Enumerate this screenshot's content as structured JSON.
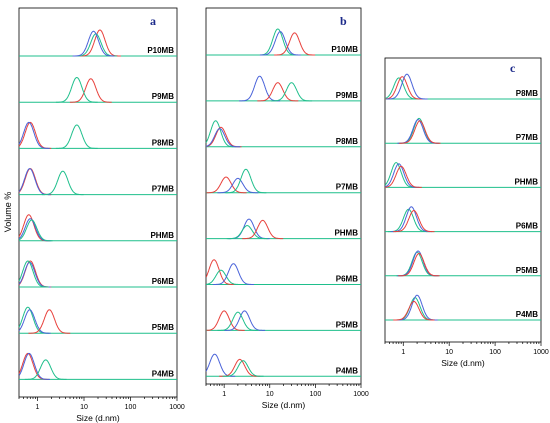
{
  "figure": {
    "ylabel": "Volume %",
    "colors": {
      "red": "#e8413c",
      "green": "#1fbf8c",
      "blue": "#4a63d9",
      "frame": "#000000",
      "panel_letter": "#1c2a8a"
    }
  },
  "chart_data": [
    {
      "type": "line",
      "panel": "a",
      "xlabel": "Size (d.nm)",
      "x_scale": "log",
      "xlim": [
        0.4,
        1000
      ],
      "x_ticks": [
        1,
        10,
        100,
        1000
      ],
      "x_tick_labels": [
        "1",
        "10",
        "100",
        "1000"
      ],
      "y_ticks": false,
      "rows": [
        {
          "label": "P10MB",
          "peaks": [
            {
              "color": "red",
              "center": 22,
              "height": 1.0
            },
            {
              "color": "green",
              "center": 18,
              "height": 0.85
            },
            {
              "color": "blue",
              "center": 16,
              "height": 0.95
            }
          ]
        },
        {
          "label": "P9MB",
          "peaks": [
            {
              "color": "red",
              "center": 14,
              "height": 0.9
            },
            {
              "color": "green",
              "center": 7,
              "height": 0.95
            }
          ]
        },
        {
          "label": "P8MB",
          "peaks": [
            {
              "color": "red",
              "center": 0.7,
              "height": 1.0
            },
            {
              "color": "blue",
              "center": 0.65,
              "height": 1.0
            },
            {
              "color": "green",
              "center": 7,
              "height": 0.9
            }
          ]
        },
        {
          "label": "P7MB",
          "peaks": [
            {
              "color": "red",
              "center": 0.7,
              "height": 1.0
            },
            {
              "color": "blue",
              "center": 0.68,
              "height": 1.0
            },
            {
              "color": "green",
              "center": 3.5,
              "height": 0.9
            }
          ]
        },
        {
          "label": "PHMB",
          "peaks": [
            {
              "color": "red",
              "center": 0.65,
              "height": 1.0
            },
            {
              "color": "blue",
              "center": 0.7,
              "height": 0.85
            },
            {
              "color": "green",
              "center": 0.75,
              "height": 0.8
            }
          ]
        },
        {
          "label": "P6MB",
          "peaks": [
            {
              "color": "red",
              "center": 0.7,
              "height": 1.0
            },
            {
              "color": "blue",
              "center": 0.68,
              "height": 0.95
            },
            {
              "color": "green",
              "center": 0.62,
              "height": 1.0
            }
          ]
        },
        {
          "label": "P5MB",
          "peaks": [
            {
              "color": "green",
              "center": 0.62,
              "height": 1.0
            },
            {
              "color": "blue",
              "center": 0.68,
              "height": 0.9
            },
            {
              "color": "red",
              "center": 1.8,
              "height": 0.9
            }
          ]
        },
        {
          "label": "P4MB",
          "peaks": [
            {
              "color": "red",
              "center": 0.62,
              "height": 1.0
            },
            {
              "color": "blue",
              "center": 0.66,
              "height": 1.0
            },
            {
              "color": "green",
              "center": 1.5,
              "height": 0.75
            }
          ]
        }
      ]
    },
    {
      "type": "line",
      "panel": "b",
      "xlabel": "Size (d.nm)",
      "x_scale": "log",
      "xlim": [
        0.4,
        1000
      ],
      "x_ticks": [
        1,
        10,
        100,
        1000
      ],
      "x_tick_labels": [
        "1",
        "10",
        "100",
        "1000"
      ],
      "y_ticks": false,
      "rows": [
        {
          "label": "P10MB",
          "peaks": [
            {
              "color": "green",
              "center": 15,
              "height": 1.0
            },
            {
              "color": "blue",
              "center": 17,
              "height": 0.9
            },
            {
              "color": "red",
              "center": 35,
              "height": 0.85
            }
          ]
        },
        {
          "label": "P9MB",
          "peaks": [
            {
              "color": "blue",
              "center": 6,
              "height": 0.95
            },
            {
              "color": "red",
              "center": 15,
              "height": 0.7
            },
            {
              "color": "green",
              "center": 30,
              "height": 0.7
            }
          ]
        },
        {
          "label": "P8MB",
          "peaks": [
            {
              "color": "green",
              "center": 0.65,
              "height": 1.0
            },
            {
              "color": "red",
              "center": 0.85,
              "height": 0.75
            },
            {
              "color": "blue",
              "center": 0.8,
              "height": 0.7
            }
          ]
        },
        {
          "label": "P7MB",
          "peaks": [
            {
              "color": "red",
              "center": 1.1,
              "height": 0.6
            },
            {
              "color": "blue",
              "center": 2.0,
              "height": 0.55
            },
            {
              "color": "green",
              "center": 3.0,
              "height": 0.9
            }
          ]
        },
        {
          "label": "PHMB",
          "peaks": [
            {
              "color": "blue",
              "center": 3.5,
              "height": 0.75
            },
            {
              "color": "green",
              "center": 3.2,
              "height": 0.5
            },
            {
              "color": "red",
              "center": 7,
              "height": 0.7
            }
          ]
        },
        {
          "label": "P6MB",
          "peaks": [
            {
              "color": "red",
              "center": 0.6,
              "height": 0.95
            },
            {
              "color": "green",
              "center": 0.85,
              "height": 0.55
            },
            {
              "color": "blue",
              "center": 1.6,
              "height": 0.8
            }
          ]
        },
        {
          "label": "P5MB",
          "peaks": [
            {
              "color": "red",
              "center": 1.0,
              "height": 0.75
            },
            {
              "color": "blue",
              "center": 2.8,
              "height": 0.75
            },
            {
              "color": "green",
              "center": 2.0,
              "height": 0.7
            }
          ]
        },
        {
          "label": "P4MB",
          "peaks": [
            {
              "color": "blue",
              "center": 0.62,
              "height": 0.85
            },
            {
              "color": "red",
              "center": 2.2,
              "height": 0.65
            },
            {
              "color": "green",
              "center": 2.6,
              "height": 0.6
            }
          ]
        }
      ]
    },
    {
      "type": "line",
      "panel": "c",
      "xlabel": "Size (d.nm)",
      "x_scale": "log",
      "xlim": [
        0.4,
        1000
      ],
      "x_ticks": [
        1,
        10,
        100,
        1000
      ],
      "x_tick_labels": [
        "1",
        "10",
        "100",
        "1000"
      ],
      "y_ticks": false,
      "rows": [
        {
          "label": "P8MB",
          "peaks": [
            {
              "color": "green",
              "center": 0.8,
              "height": 0.85
            },
            {
              "color": "red",
              "center": 0.95,
              "height": 0.9
            },
            {
              "color": "blue",
              "center": 1.2,
              "height": 1.0
            }
          ]
        },
        {
          "label": "P7MB",
          "peaks": [
            {
              "color": "green",
              "center": 2.2,
              "height": 1.0
            },
            {
              "color": "blue",
              "center": 2.1,
              "height": 0.95
            },
            {
              "color": "red",
              "center": 2.3,
              "height": 0.9
            }
          ]
        },
        {
          "label": "PHMB",
          "peaks": [
            {
              "color": "green",
              "center": 0.7,
              "height": 1.0
            },
            {
              "color": "blue",
              "center": 0.8,
              "height": 0.95
            },
            {
              "color": "red",
              "center": 0.9,
              "height": 0.85
            }
          ]
        },
        {
          "label": "P6MB",
          "peaks": [
            {
              "color": "green",
              "center": 1.3,
              "height": 0.9
            },
            {
              "color": "blue",
              "center": 1.5,
              "height": 1.0
            },
            {
              "color": "red",
              "center": 1.7,
              "height": 0.85
            }
          ]
        },
        {
          "label": "P5MB",
          "peaks": [
            {
              "color": "green",
              "center": 2.0,
              "height": 0.95
            },
            {
              "color": "blue",
              "center": 2.1,
              "height": 1.0
            },
            {
              "color": "red",
              "center": 2.2,
              "height": 0.9
            }
          ]
        },
        {
          "label": "P4MB",
          "peaks": [
            {
              "color": "green",
              "center": 1.8,
              "height": 0.9
            },
            {
              "color": "blue",
              "center": 2.0,
              "height": 1.0
            },
            {
              "color": "red",
              "center": 1.7,
              "height": 0.75
            }
          ]
        }
      ]
    }
  ]
}
